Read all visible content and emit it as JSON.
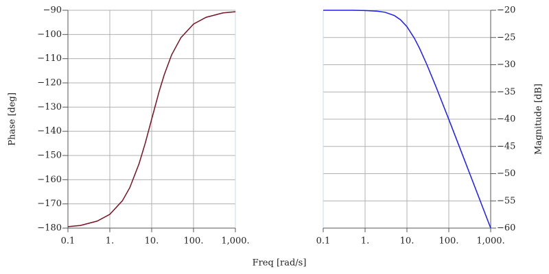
{
  "xlabel": "Freq [rad/s]",
  "chart_data": [
    {
      "type": "line",
      "log_x": true,
      "grid": true,
      "ylabel": "Phase [deg]",
      "x": [
        0.1,
        0.2,
        0.5,
        1,
        2,
        3,
        5,
        7,
        10,
        15,
        20,
        30,
        50,
        100,
        200,
        500,
        1000
      ],
      "xlim": [
        0.1,
        1000
      ],
      "xticks": [
        {
          "value": 0.1,
          "label": "0.1"
        },
        {
          "value": 1,
          "label": "1."
        },
        {
          "value": 10,
          "label": "10."
        },
        {
          "value": 100,
          "label": "100."
        },
        {
          "value": 1000,
          "label": "1,000."
        }
      ],
      "ylim": [
        -180,
        -90
      ],
      "yticks": [
        {
          "value": -90,
          "label": "−90"
        },
        {
          "value": -100,
          "label": "−100"
        },
        {
          "value": -110,
          "label": "−110"
        },
        {
          "value": -120,
          "label": "−120"
        },
        {
          "value": -130,
          "label": "−130"
        },
        {
          "value": -140,
          "label": "−140"
        },
        {
          "value": -150,
          "label": "−150"
        },
        {
          "value": -160,
          "label": "−160"
        },
        {
          "value": -170,
          "label": "−170"
        },
        {
          "value": -180,
          "label": "−180"
        }
      ],
      "series": [
        {
          "color": "#7a1020",
          "values": [
            -179.4,
            -178.9,
            -177.1,
            -174.3,
            -168.7,
            -163.3,
            -153.4,
            -145.0,
            -135.0,
            -123.7,
            -116.6,
            -108.4,
            -101.3,
            -95.7,
            -92.9,
            -91.1,
            -90.6
          ]
        }
      ]
    },
    {
      "type": "line",
      "log_x": true,
      "grid": true,
      "y2label": "Magnitude [dB]",
      "x": [
        0.1,
        0.2,
        0.5,
        1,
        2,
        3,
        5,
        7,
        10,
        15,
        20,
        30,
        50,
        100,
        200,
        500,
        1000
      ],
      "xlim": [
        0.1,
        1000
      ],
      "xticks": [
        {
          "value": 0.1,
          "label": "0.1"
        },
        {
          "value": 1,
          "label": "1."
        },
        {
          "value": 10,
          "label": "10."
        },
        {
          "value": 100,
          "label": "100."
        },
        {
          "value": 1000,
          "label": "1,000."
        }
      ],
      "y2lim": [
        -60,
        -20
      ],
      "y2ticks": [
        {
          "value": -20,
          "label": "−20"
        },
        {
          "value": -25,
          "label": "−25"
        },
        {
          "value": -30,
          "label": "−30"
        },
        {
          "value": -35,
          "label": "−35"
        },
        {
          "value": -40,
          "label": "−40"
        },
        {
          "value": -45,
          "label": "−45"
        },
        {
          "value": -50,
          "label": "−50"
        },
        {
          "value": -55,
          "label": "−55"
        },
        {
          "value": -60,
          "label": "−60"
        }
      ],
      "series": [
        {
          "color": "#1a1aff",
          "axis": "y2",
          "values": [
            -20.0,
            -20.0,
            -20.0,
            -20.04,
            -20.17,
            -20.37,
            -20.97,
            -21.74,
            -23.01,
            -25.12,
            -26.99,
            -30.0,
            -34.15,
            -40.04,
            -46.03,
            -53.98,
            -60.0
          ]
        }
      ]
    }
  ]
}
